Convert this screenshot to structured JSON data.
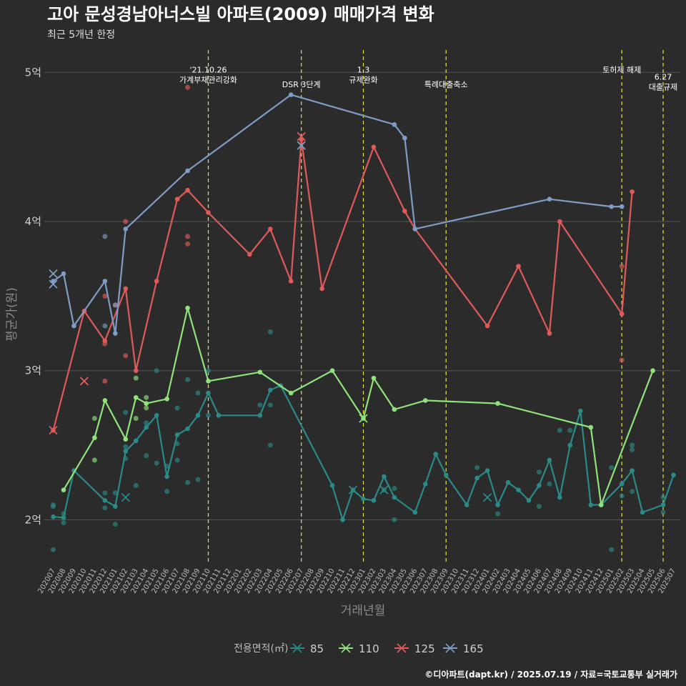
{
  "chart_data": {
    "type": "line",
    "title": "고아 문성경남아너스빌 아파트(2009) 매매가격 변화",
    "subtitle": "최근 5개년 한정",
    "xlabel": "거래년월",
    "ylabel": "평균가(원)",
    "ylim": [
      17000,
      51500
    ],
    "yticks": [
      {
        "value": 20000,
        "label": "2억"
      },
      {
        "value": 30000,
        "label": "3억"
      },
      {
        "value": 40000,
        "label": "4억"
      },
      {
        "value": 50000,
        "label": "5억"
      }
    ],
    "categories": [
      "202007",
      "202008",
      "202009",
      "202010",
      "202011",
      "202012",
      "202101",
      "202102",
      "202103",
      "202104",
      "202105",
      "202106",
      "202107",
      "202108",
      "202109",
      "202110",
      "202111",
      "202112",
      "202201",
      "202202",
      "202203",
      "202204",
      "202205",
      "202206",
      "202207",
      "202208",
      "202209",
      "202210",
      "202211",
      "202212",
      "202301",
      "202302",
      "202303",
      "202304",
      "202305",
      "202306",
      "202307",
      "202308",
      "202309",
      "202310",
      "202311",
      "202312",
      "202401",
      "202402",
      "202403",
      "202404",
      "202405",
      "202406",
      "202407",
      "202408",
      "202409",
      "202410",
      "202411",
      "202412",
      "202501",
      "202502",
      "202503",
      "202504",
      "202505",
      "202506",
      "202507"
    ],
    "legend": {
      "title": "전용면적(㎡)",
      "position": "bottom"
    },
    "series": [
      {
        "name": "85",
        "color": "#2a8a88",
        "line": [
          [
            "202007",
            20200
          ],
          [
            "202008",
            20150
          ],
          [
            "202009",
            23300
          ],
          [
            "202012",
            21300
          ],
          [
            "202101",
            20900
          ],
          [
            "202102",
            24600
          ],
          [
            "202103",
            25300
          ],
          [
            "202104",
            26200
          ],
          [
            "202105",
            27000
          ],
          [
            "202106",
            22900
          ],
          [
            "202107",
            25700
          ],
          [
            "202108",
            26100
          ],
          [
            "202109",
            27000
          ],
          [
            "202110",
            28500
          ],
          [
            "202111",
            27000
          ],
          [
            "202203",
            27000
          ],
          [
            "202204",
            28700
          ],
          [
            "202205",
            29000
          ],
          [
            "202210",
            22300
          ],
          [
            "202211",
            20000
          ],
          [
            "202212",
            22000
          ],
          [
            "202301",
            21400
          ],
          [
            "202302",
            21300
          ],
          [
            "202303",
            22900
          ],
          [
            "202304",
            21500
          ],
          [
            "202306",
            20500
          ],
          [
            "202307",
            22400
          ],
          [
            "202308",
            24400
          ],
          [
            "202309",
            23000
          ],
          [
            "202311",
            21000
          ],
          [
            "202312",
            22800
          ],
          [
            "202401",
            23300
          ],
          [
            "202402",
            21000
          ],
          [
            "202403",
            22500
          ],
          [
            "202404",
            22000
          ],
          [
            "202405",
            21300
          ],
          [
            "202406",
            22300
          ],
          [
            "202407",
            24000
          ],
          [
            "202408",
            21500
          ],
          [
            "202409",
            25000
          ],
          [
            "202410",
            27300
          ],
          [
            "202411",
            21000
          ],
          [
            "202412",
            21000
          ],
          [
            "202502",
            22400
          ],
          [
            "202503",
            23300
          ],
          [
            "202504",
            20500
          ],
          [
            "202506",
            21000
          ],
          [
            "202507",
            23000
          ]
        ],
        "points": [
          [
            "202007",
            18000
          ],
          [
            "202007",
            20900
          ],
          [
            "202007",
            21000
          ],
          [
            "202008",
            19800
          ],
          [
            "202008",
            20400
          ],
          [
            "202012",
            20800
          ],
          [
            "202012",
            21800
          ],
          [
            "202101",
            19700
          ],
          [
            "202101",
            21800
          ],
          [
            "202102",
            24100
          ],
          [
            "202102",
            24900
          ],
          [
            "202102",
            27200
          ],
          [
            "202103",
            22300
          ],
          [
            "202104",
            24300
          ],
          [
            "202104",
            26500
          ],
          [
            "202105",
            23800
          ],
          [
            "202105",
            30000
          ],
          [
            "202106",
            21900
          ],
          [
            "202106",
            23600
          ],
          [
            "202107",
            24000
          ],
          [
            "202107",
            25100
          ],
          [
            "202107",
            27500
          ],
          [
            "202108",
            22500
          ],
          [
            "202108",
            29400
          ],
          [
            "202109",
            22700
          ],
          [
            "202109",
            28500
          ],
          [
            "202110",
            27000
          ],
          [
            "202110",
            30000
          ],
          [
            "202203",
            27700
          ],
          [
            "202204",
            25000
          ],
          [
            "202204",
            27700
          ],
          [
            "202204",
            32600
          ],
          [
            "202303",
            22000
          ],
          [
            "202304",
            20000
          ],
          [
            "202304",
            22100
          ],
          [
            "202312",
            23500
          ],
          [
            "202402",
            20400
          ],
          [
            "202406",
            20900
          ],
          [
            "202406",
            23200
          ],
          [
            "202407",
            22400
          ],
          [
            "202408",
            26000
          ],
          [
            "202409",
            26000
          ],
          [
            "202501",
            18000
          ],
          [
            "202501",
            23500
          ],
          [
            "202502",
            21600
          ],
          [
            "202503",
            21900
          ],
          [
            "202503",
            24700
          ],
          [
            "202503",
            25000
          ],
          [
            "202506",
            20500
          ],
          [
            "202506",
            21500
          ]
        ],
        "markers_x": [
          [
            "202102",
            21500
          ],
          [
            "202212",
            22000
          ],
          [
            "202303",
            22000
          ],
          [
            "202401",
            21500
          ]
        ]
      },
      {
        "name": "110",
        "color": "#90e37a",
        "line": [
          [
            "202008",
            22000
          ],
          [
            "202011",
            25500
          ],
          [
            "202012",
            28000
          ],
          [
            "202102",
            25400
          ],
          [
            "202103",
            28200
          ],
          [
            "202104",
            27800
          ],
          [
            "202106",
            28100
          ],
          [
            "202108",
            34200
          ],
          [
            "202110",
            29300
          ],
          [
            "202203",
            29900
          ],
          [
            "202206",
            28500
          ],
          [
            "202210",
            30000
          ],
          [
            "202301",
            26800
          ],
          [
            "202302",
            29500
          ],
          [
            "202304",
            27400
          ],
          [
            "202307",
            28000
          ],
          [
            "202402",
            27800
          ],
          [
            "202411",
            26200
          ],
          [
            "202412",
            21000
          ],
          [
            "202505",
            30000
          ]
        ],
        "points": [
          [
            "202011",
            26800
          ],
          [
            "202011",
            24000
          ],
          [
            "202103",
            29500
          ],
          [
            "202103",
            26800
          ],
          [
            "202104",
            28200
          ],
          [
            "202104",
            27500
          ]
        ],
        "markers_x": [
          [
            "202301",
            26800
          ]
        ]
      },
      {
        "name": "125",
        "color": "#e05a5a",
        "line": [
          [
            "202007",
            26000
          ],
          [
            "202010",
            34000
          ],
          [
            "202012",
            32000
          ],
          [
            "202102",
            35500
          ],
          [
            "202103",
            30000
          ],
          [
            "202105",
            36000
          ],
          [
            "202107",
            41500
          ],
          [
            "202108",
            42100
          ],
          [
            "202110",
            40600
          ],
          [
            "202202",
            37800
          ],
          [
            "202204",
            39500
          ],
          [
            "202206",
            36000
          ],
          [
            "202207",
            45500
          ],
          [
            "202209",
            35500
          ],
          [
            "202302",
            45000
          ],
          [
            "202305",
            40700
          ],
          [
            "202306",
            39500
          ],
          [
            "202401",
            33000
          ],
          [
            "202404",
            37000
          ],
          [
            "202407",
            32500
          ],
          [
            "202408",
            40000
          ],
          [
            "202502",
            33800
          ],
          [
            "202503",
            42000
          ]
        ],
        "points": [
          [
            "202012",
            31800
          ],
          [
            "202012",
            29300
          ],
          [
            "202012",
            35000
          ],
          [
            "202101",
            34400
          ],
          [
            "202102",
            40000
          ],
          [
            "202102",
            31000
          ],
          [
            "202108",
            49000
          ],
          [
            "202108",
            39000
          ],
          [
            "202108",
            38500
          ],
          [
            "202502",
            37000
          ],
          [
            "202502",
            30700
          ]
        ],
        "markers_x": [
          [
            "202007",
            26000
          ],
          [
            "202010",
            29300
          ],
          [
            "202207",
            45700
          ]
        ]
      },
      {
        "name": "165",
        "color": "#7f9cc4",
        "line": [
          [
            "202007",
            36000
          ],
          [
            "202008",
            36500
          ],
          [
            "202009",
            33000
          ],
          [
            "202012",
            36000
          ],
          [
            "202101",
            32500
          ],
          [
            "202102",
            39500
          ],
          [
            "202108",
            43400
          ],
          [
            "202206",
            48500
          ],
          [
            "202304",
            46500
          ],
          [
            "202305",
            45600
          ],
          [
            "202306",
            39500
          ],
          [
            "202407",
            41500
          ],
          [
            "202501",
            41000
          ],
          [
            "202502",
            41000
          ]
        ],
        "points": [
          [
            "202012",
            39000
          ],
          [
            "202012",
            33000
          ],
          [
            "202101",
            34400
          ]
        ],
        "markers_x": [
          [
            "202007",
            36500
          ],
          [
            "202007",
            35800
          ],
          [
            "202207",
            45100
          ]
        ]
      }
    ],
    "events": [
      {
        "month": "202110",
        "lines": [
          "'21.10.26",
          "가계부채관리강화"
        ],
        "text_y": 50000
      },
      {
        "month": "202207",
        "lines": [
          "DSR 3단계"
        ],
        "text_y": 49000
      },
      {
        "month": "202301",
        "lines": [
          "1.3",
          "규제완화"
        ],
        "text_y": 50000
      },
      {
        "month": "202309",
        "lines": [
          "특례대출축소"
        ],
        "text_y": 49000
      },
      {
        "month": "202502",
        "lines": [
          "토허제 해제"
        ],
        "text_y": 50000
      },
      {
        "month": "202506",
        "lines": [
          "6.27",
          "대출규제"
        ],
        "text_y": 49500
      }
    ],
    "caption": "©디아파트(dapt.kr) / 2025.07.19 / 자료=국토교통부 실거래가"
  }
}
